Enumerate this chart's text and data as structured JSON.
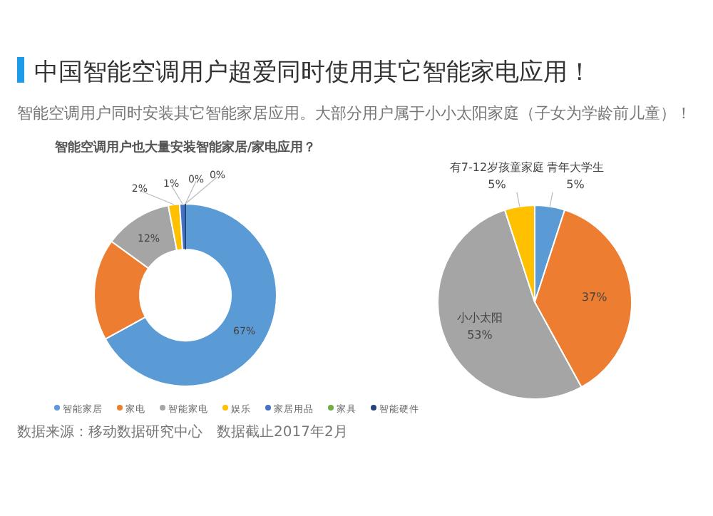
{
  "chart_data": [
    {
      "type": "other",
      "title": "中国智能空调用户超爱同时使用其它智能家电应用！",
      "subtitle": "智能空调用户同时安装其它智能家居应用。大部分用户属于小小太阳家庭（子女为学龄前儿童）！",
      "annotations": [
        "数据来源：移动数据研究中心　数据截止2017年2月"
      ]
    },
    {
      "type": "donut",
      "title": "智能空调用户也大量安装智能家居/家电应用？",
      "categories": [
        "智能家居",
        "家电",
        "智能家电",
        "娱乐",
        "家居用品",
        "家具",
        "智能硬件"
      ],
      "values": [
        67,
        18,
        12,
        2,
        1,
        0,
        0
      ],
      "value_labels": [
        "67%",
        null,
        "12%",
        "2%",
        "1%",
        "0%",
        "0%"
      ],
      "colors": [
        "#5b9bd5",
        "#ed7d31",
        "#a5a5a5",
        "#ffc000",
        "#4472c4",
        "#70ad47",
        "#264478"
      ],
      "legend": "bottom"
    },
    {
      "type": "pie",
      "categories": [
        "青年大学生",
        null,
        "小小太阳",
        "有7-12岁孩童家庭"
      ],
      "values": [
        5,
        37,
        53,
        5
      ],
      "value_labels": [
        "5%",
        "37%",
        "53%",
        "5%"
      ],
      "colors": [
        "#5b9bd5",
        "#ed7d31",
        "#a5a5a5",
        "#ffc000"
      ]
    }
  ]
}
